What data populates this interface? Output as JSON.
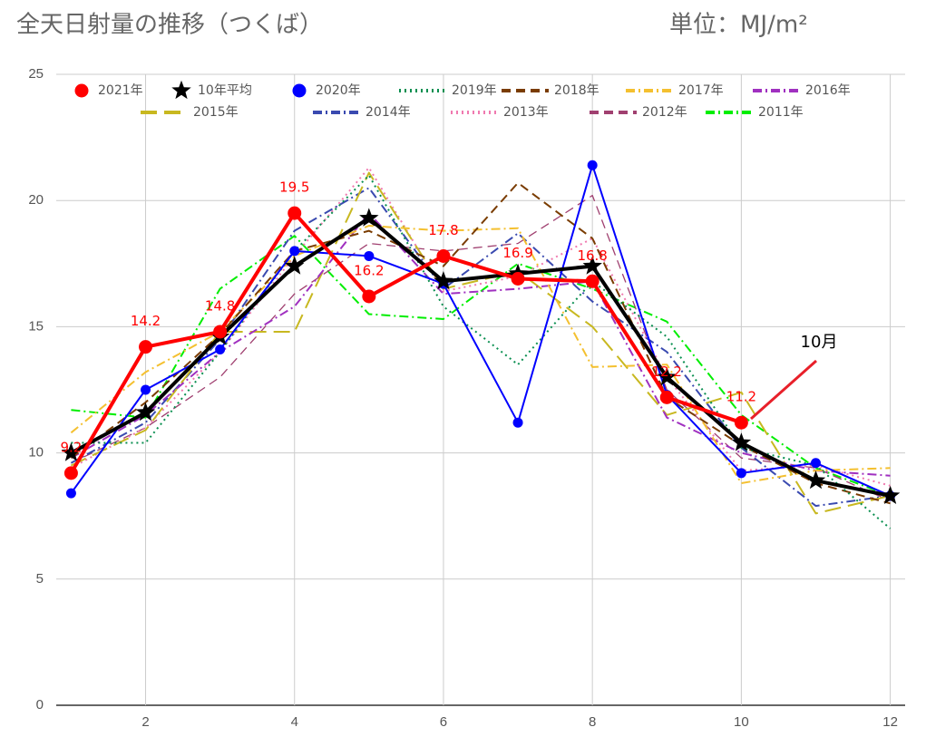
{
  "chart_data": {
    "type": "line",
    "title": "全天日射量の推移（つくば）",
    "unit_label": "単位：MJ/m²",
    "annotation": "10月",
    "x": [
      1,
      2,
      3,
      4,
      5,
      6,
      7,
      8,
      9,
      10,
      11,
      12
    ],
    "xlim": [
      0.8,
      12.2
    ],
    "xticks": [
      2,
      4,
      6,
      8,
      10,
      12
    ],
    "ylim": [
      0,
      25
    ],
    "yticks": [
      0,
      5,
      10,
      15,
      20,
      25
    ],
    "grid": true,
    "series": [
      {
        "name": "2021年",
        "color": "#ff0000",
        "width": 4,
        "dash": "solid",
        "marker": "circle",
        "data_labels": true,
        "values": [
          9.2,
          14.2,
          14.8,
          19.5,
          16.2,
          17.8,
          16.9,
          16.8,
          12.2,
          11.2,
          null,
          null
        ]
      },
      {
        "name": "10年平均",
        "color": "#000000",
        "width": 4,
        "dash": "solid",
        "marker": "star",
        "values": [
          10.0,
          11.6,
          14.6,
          17.4,
          19.3,
          16.8,
          17.1,
          17.4,
          13.0,
          10.4,
          8.9,
          8.3
        ]
      },
      {
        "name": "2020年",
        "color": "#0000ff",
        "width": 2,
        "dash": "solid",
        "marker": "circle",
        "values": [
          8.4,
          12.5,
          14.1,
          18.0,
          17.8,
          16.7,
          11.2,
          21.4,
          12.3,
          9.2,
          9.6,
          8.3
        ]
      },
      {
        "name": "2019年",
        "color": "#0a8f50",
        "width": 2,
        "dash": "dotted",
        "values": [
          10.4,
          10.4,
          14.0,
          18.0,
          21.0,
          15.8,
          13.5,
          16.8,
          14.6,
          10.2,
          9.5,
          7.0
        ]
      },
      {
        "name": "2018年",
        "color": "#7a3c00",
        "width": 2,
        "dash": "dashed",
        "values": [
          9.8,
          12.0,
          14.7,
          18.0,
          18.8,
          17.4,
          20.7,
          18.5,
          12.2,
          10.3,
          8.8,
          8.0
        ]
      },
      {
        "name": "2017年",
        "color": "#f4c030",
        "width": 2,
        "dash": "dashdot",
        "values": [
          10.8,
          13.2,
          14.8,
          17.8,
          19.0,
          18.8,
          18.9,
          13.4,
          13.5,
          8.8,
          9.3,
          9.4
        ]
      },
      {
        "name": "2016年",
        "color": "#a030c0",
        "width": 2,
        "dash": "dashdot",
        "values": [
          9.8,
          11.5,
          14.0,
          15.8,
          19.5,
          16.3,
          16.5,
          16.8,
          11.4,
          10.0,
          9.3,
          9.1
        ]
      },
      {
        "name": "2015年",
        "color": "#c8b820",
        "width": 2,
        "dash": "longdash",
        "values": [
          9.5,
          10.9,
          14.8,
          14.8,
          21.1,
          16.5,
          17.2,
          15.0,
          11.5,
          12.4,
          7.6,
          8.3
        ]
      },
      {
        "name": "2014年",
        "color": "#3a4ab0",
        "width": 2,
        "dash": "dashdot",
        "values": [
          9.6,
          11.2,
          14.5,
          18.8,
          20.5,
          16.5,
          18.7,
          16.0,
          14.0,
          10.2,
          7.9,
          8.3
        ]
      },
      {
        "name": "2013年",
        "color": "#f07ab0",
        "width": 2,
        "dash": "dotted",
        "values": [
          9.4,
          11.0,
          14.0,
          17.8,
          21.3,
          16.4,
          17.0,
          18.5,
          13.0,
          9.3,
          9.5,
          8.7
        ]
      },
      {
        "name": "2012年",
        "color": "#a04070",
        "width": 1.3,
        "dash": "dashed",
        "values": [
          9.6,
          11.0,
          13.0,
          16.3,
          18.3,
          18.0,
          18.3,
          20.2,
          12.5,
          9.8,
          9.4,
          8.1
        ]
      },
      {
        "name": "2011年",
        "color": "#00ee00",
        "width": 2,
        "dash": "dashdot",
        "values": [
          11.7,
          11.4,
          16.5,
          18.6,
          15.5,
          15.3,
          17.5,
          16.5,
          15.2,
          11.5,
          9.4,
          8.3
        ]
      }
    ]
  }
}
